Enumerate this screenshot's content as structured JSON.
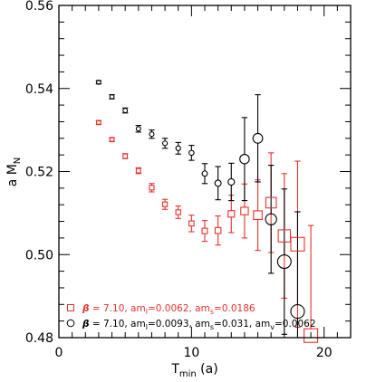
{
  "chart_data": {
    "type": "scatter",
    "title": "",
    "xlabel": "T",
    "xlabel_sub": "min",
    "xlabel_unit": " (a)",
    "ylabel": "a M",
    "ylabel_sub": "N",
    "xlim": [
      0,
      22
    ],
    "ylim": [
      0.48,
      0.56
    ],
    "x_ticks": [
      0,
      10,
      20
    ],
    "y_ticks": [
      0.48,
      0.5,
      0.52,
      0.54,
      0.56
    ],
    "y_tick_labels": [
      "0.48",
      "0.50",
      "0.52",
      "0.54",
      "0.56"
    ],
    "grid": false,
    "legend_position": "bottom-left",
    "series": [
      {
        "name": "β = 7.10, am_l=0.0062, am_s=0.0186",
        "legend_parts": [
          "β",
          " = 7.10,  am",
          "l",
          "=0.0062,  am",
          "s",
          "=0.0186"
        ],
        "marker": "square",
        "color": "#e8312f",
        "points": [
          {
            "x": 3,
            "y": 0.5318,
            "err": 0.0004
          },
          {
            "x": 4,
            "y": 0.5277,
            "err": 0.0004
          },
          {
            "x": 5,
            "y": 0.5237,
            "err": 0.0006
          },
          {
            "x": 6,
            "y": 0.5202,
            "err": 0.0007
          },
          {
            "x": 7,
            "y": 0.5161,
            "err": 0.001
          },
          {
            "x": 8,
            "y": 0.5121,
            "err": 0.0012
          },
          {
            "x": 9,
            "y": 0.5102,
            "err": 0.0015
          },
          {
            "x": 10,
            "y": 0.5075,
            "err": 0.002
          },
          {
            "x": 11,
            "y": 0.5057,
            "err": 0.0025
          },
          {
            "x": 12,
            "y": 0.5058,
            "err": 0.0035
          },
          {
            "x": 13,
            "y": 0.5098,
            "err": 0.0045
          },
          {
            "x": 14,
            "y": 0.5105,
            "err": 0.0065
          },
          {
            "x": 15,
            "y": 0.5095,
            "err": 0.0085
          },
          {
            "x": 16,
            "y": 0.5125,
            "err": 0.012
          },
          {
            "x": 17,
            "y": 0.5045,
            "err": 0.015
          },
          {
            "x": 18,
            "y": 0.5025,
            "err": 0.02
          },
          {
            "x": 19,
            "y": 0.4805,
            "err": 0.0265
          }
        ]
      },
      {
        "name": "β = 7.10, am_l=0.0093, am_s=0.031, am_v=0.0062",
        "legend_parts": [
          "β",
          " = 7.10,  am",
          "l",
          "=0.0093,  am",
          "s",
          "=0.031,  am",
          "v",
          "=0.0062"
        ],
        "marker": "circle",
        "color": "#000000",
        "points": [
          {
            "x": 3,
            "y": 0.5415,
            "err": 0.0004
          },
          {
            "x": 4,
            "y": 0.538,
            "err": 0.0005
          },
          {
            "x": 5,
            "y": 0.5347,
            "err": 0.0006
          },
          {
            "x": 6,
            "y": 0.5303,
            "err": 0.0008
          },
          {
            "x": 7,
            "y": 0.529,
            "err": 0.001
          },
          {
            "x": 8,
            "y": 0.5268,
            "err": 0.0012
          },
          {
            "x": 9,
            "y": 0.5256,
            "err": 0.0014
          },
          {
            "x": 10,
            "y": 0.5245,
            "err": 0.0018
          },
          {
            "x": 11,
            "y": 0.5195,
            "err": 0.0024
          },
          {
            "x": 12,
            "y": 0.5172,
            "err": 0.004
          },
          {
            "x": 13,
            "y": 0.5175,
            "err": 0.0045
          },
          {
            "x": 14,
            "y": 0.523,
            "err": 0.01
          },
          {
            "x": 15,
            "y": 0.528,
            "err": 0.0105
          },
          {
            "x": 16,
            "y": 0.5085,
            "err": 0.013
          },
          {
            "x": 17,
            "y": 0.4983,
            "err": 0.0175
          },
          {
            "x": 18,
            "y": 0.4863,
            "err": 0.024
          }
        ]
      }
    ]
  }
}
